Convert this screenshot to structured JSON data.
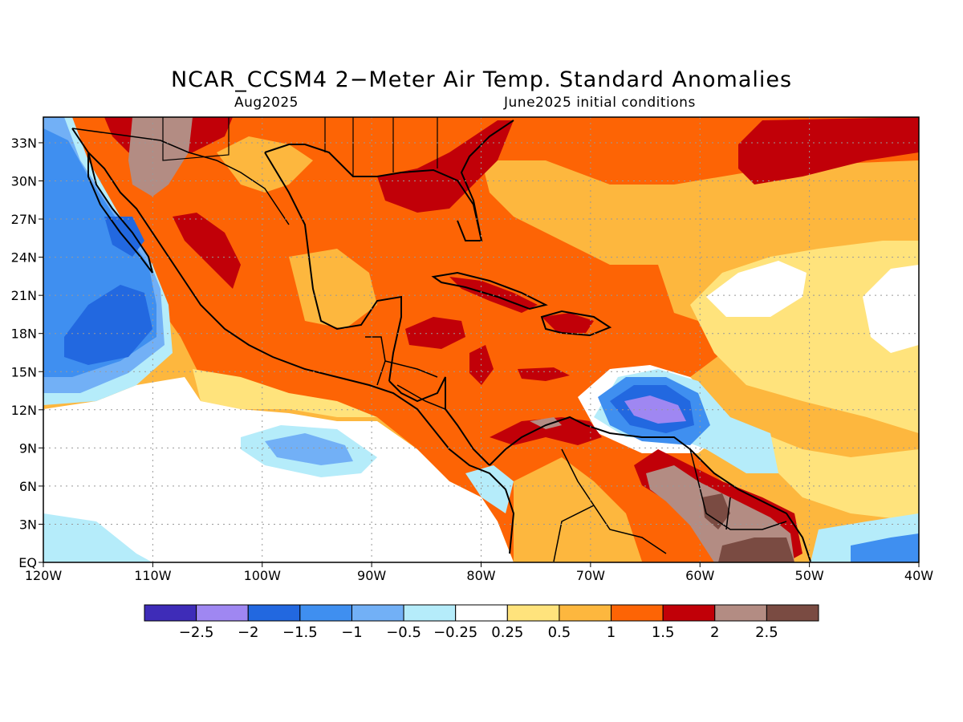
{
  "header": {
    "title": "NCAR_CCSM4 2−Meter Air Temp. Standard Anomalies",
    "valid": "Aug2025",
    "init": "June2025 initial conditions"
  },
  "palette": {
    "n25": "#3e2cb8",
    "n20": "#9f87f2",
    "n15": "#2268e0",
    "n10": "#3f8ff0",
    "n05": "#72b0f6",
    "n025": "#b5ecfa",
    "zero": "#ffffff",
    "p025": "#ffe37c",
    "p05": "#fdb73e",
    "p10": "#fd6405",
    "p15": "#c10008",
    "p20": "#b38c83",
    "p25": "#7a4b42"
  },
  "chart_data": {
    "type": "heatmap",
    "variable": "2-Meter Air Temp. Standard Anomalies",
    "lon_range": [
      -120,
      -40
    ],
    "lat_range": [
      0,
      35
    ],
    "x_ticks": [
      "120W",
      "110W",
      "100W",
      "90W",
      "80W",
      "70W",
      "60W",
      "50W",
      "40W"
    ],
    "y_ticks": [
      "EQ",
      "3N",
      "6N",
      "9N",
      "12N",
      "15N",
      "18N",
      "21N",
      "24N",
      "27N",
      "30N",
      "33N"
    ],
    "grid": true,
    "colorbar": {
      "labels": [
        "−2.5",
        "−2",
        "−1.5",
        "−1",
        "−0.5",
        "−0.25",
        "0.25",
        "0.5",
        "1",
        "1.5",
        "2",
        "2.5"
      ],
      "colors": [
        "#3e2cb8",
        "#9f87f2",
        "#2268e0",
        "#3f8ff0",
        "#72b0f6",
        "#b5ecfa",
        "#ffffff",
        "#ffe37c",
        "#fdb73e",
        "#fd6405",
        "#c10008",
        "#b38c83",
        "#7a4b42"
      ]
    }
  }
}
